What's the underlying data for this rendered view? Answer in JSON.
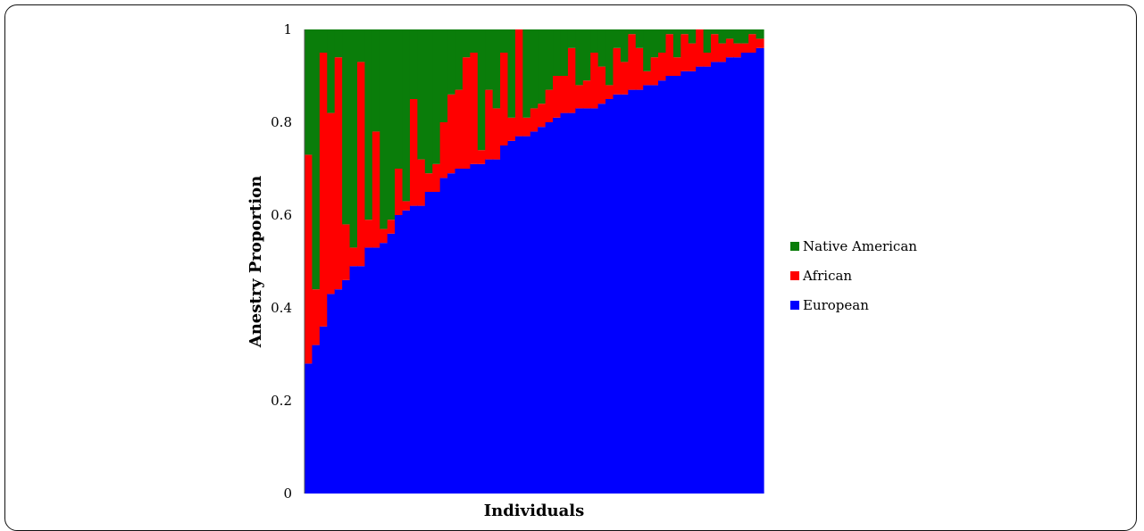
{
  "chart_data": {
    "type": "bar",
    "stacked": true,
    "title": "",
    "xlabel": "Individuals",
    "ylabel": "Anestry Proportion",
    "ylim": [
      0,
      1
    ],
    "yticks": [
      "0",
      "0.2",
      "0.4",
      "0.6",
      "0.8",
      "1"
    ],
    "legend_position": "right",
    "grid": false,
    "series": [
      {
        "name": "European",
        "color": "#0000ff",
        "values": [
          0.28,
          0.32,
          0.36,
          0.43,
          0.44,
          0.46,
          0.49,
          0.49,
          0.53,
          0.53,
          0.54,
          0.56,
          0.6,
          0.61,
          0.62,
          0.62,
          0.65,
          0.65,
          0.68,
          0.69,
          0.7,
          0.7,
          0.71,
          0.71,
          0.72,
          0.72,
          0.75,
          0.76,
          0.77,
          0.77,
          0.78,
          0.79,
          0.8,
          0.81,
          0.82,
          0.82,
          0.83,
          0.83,
          0.83,
          0.84,
          0.85,
          0.86,
          0.86,
          0.87,
          0.87,
          0.88,
          0.88,
          0.89,
          0.9,
          0.9,
          0.91,
          0.91,
          0.92,
          0.92,
          0.93,
          0.93,
          0.94,
          0.94,
          0.95,
          0.95,
          0.96
        ]
      },
      {
        "name": "African",
        "color": "#ff0000",
        "values": [
          0.45,
          0.12,
          0.59,
          0.39,
          0.5,
          0.12,
          0.04,
          0.44,
          0.06,
          0.25,
          0.03,
          0.03,
          0.1,
          0.02,
          0.23,
          0.1,
          0.04,
          0.06,
          0.12,
          0.17,
          0.17,
          0.24,
          0.24,
          0.03,
          0.15,
          0.11,
          0.2,
          0.05,
          0.23,
          0.04,
          0.05,
          0.05,
          0.07,
          0.09,
          0.08,
          0.14,
          0.05,
          0.06,
          0.12,
          0.08,
          0.03,
          0.1,
          0.07,
          0.12,
          0.09,
          0.03,
          0.06,
          0.06,
          0.09,
          0.04,
          0.08,
          0.06,
          0.08,
          0.03,
          0.06,
          0.04,
          0.04,
          0.03,
          0.02,
          0.04,
          0.02
        ]
      },
      {
        "name": "Native American",
        "color": "#0a7d0a",
        "values": [
          0.27,
          0.56,
          0.05,
          0.18,
          0.06,
          0.42,
          0.47,
          0.07,
          0.41,
          0.22,
          0.43,
          0.41,
          0.3,
          0.37,
          0.15,
          0.28,
          0.31,
          0.29,
          0.2,
          0.14,
          0.13,
          0.06,
          0.05,
          0.26,
          0.13,
          0.17,
          0.05,
          0.19,
          0.0,
          0.19,
          0.17,
          0.16,
          0.13,
          0.1,
          0.1,
          0.04,
          0.12,
          0.11,
          0.05,
          0.08,
          0.12,
          0.04,
          0.07,
          0.01,
          0.04,
          0.09,
          0.06,
          0.05,
          0.01,
          0.06,
          0.01,
          0.03,
          0.0,
          0.05,
          0.01,
          0.03,
          0.02,
          0.03,
          0.03,
          0.01,
          0.02
        ]
      }
    ]
  }
}
